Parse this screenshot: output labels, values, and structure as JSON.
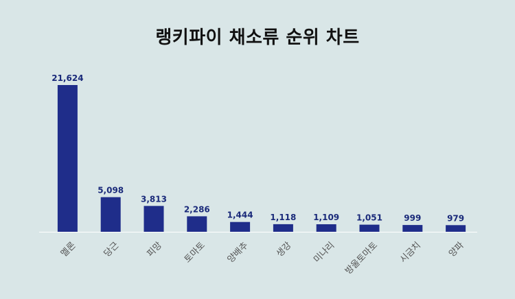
{
  "colors": {
    "background": "#d9e6e7",
    "bar": "#1f2d8a",
    "value_label": "#1a2a7a",
    "tick_label": "#555555",
    "axis": "#ffffff"
  },
  "chart_data": {
    "type": "bar",
    "title": "랭키파이 채소류 순위 차트",
    "xlabel": "",
    "ylabel": "",
    "categories": [
      "멜론",
      "당근",
      "피망",
      "토마토",
      "양배추",
      "생강",
      "미나리",
      "방울토마토",
      "시금치",
      "양파"
    ],
    "values": [
      21624,
      5098,
      3813,
      2286,
      1444,
      1118,
      1109,
      1051,
      999,
      979
    ],
    "value_labels": [
      "21,624",
      "5,098",
      "3,813",
      "2,286",
      "1,444",
      "1,118",
      "1,109",
      "1,051",
      "999",
      "979"
    ],
    "ylim": [
      0,
      21624
    ],
    "grid": false,
    "legend": "none"
  }
}
